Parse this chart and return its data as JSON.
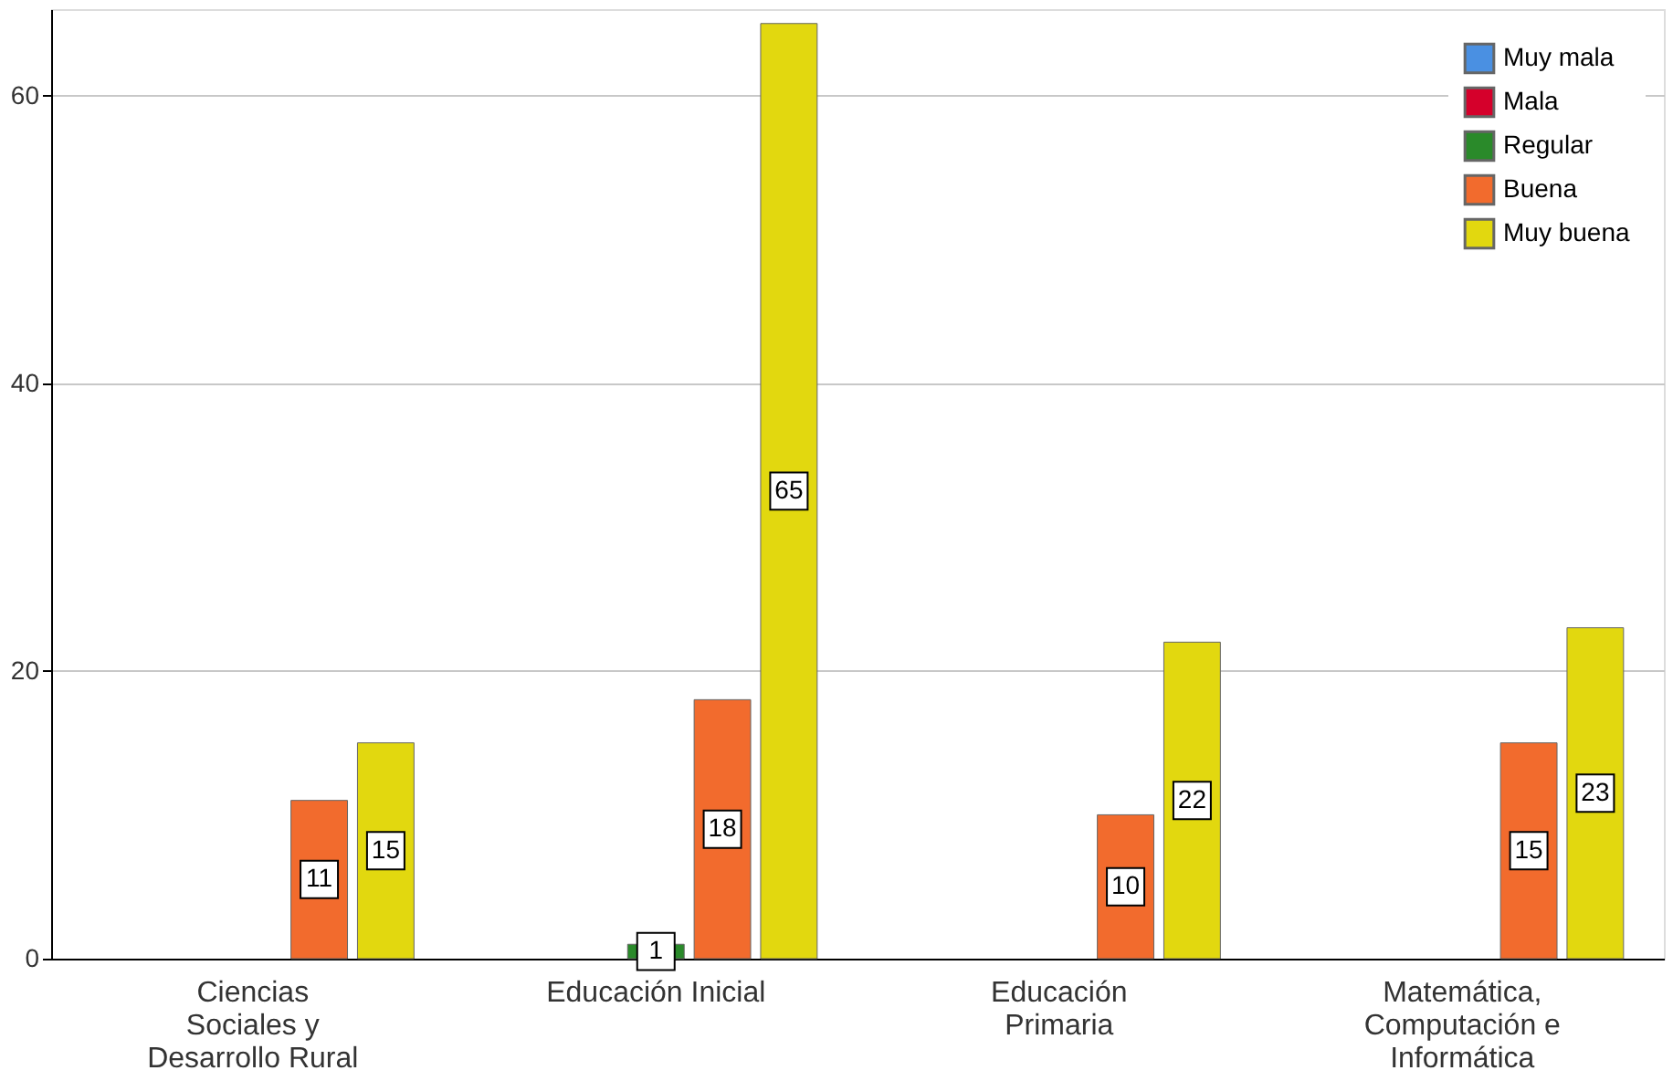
{
  "chart_data": {
    "type": "bar",
    "categories": [
      "Ciencias\nSociales y\nDesarrollo Rural",
      "Educación Inicial",
      "Educación\nPrimaria",
      "Matemática,\nComputación e\nInformática"
    ],
    "series": [
      {
        "name": "Muy mala",
        "color": "#4a90e2",
        "values": [
          null,
          null,
          null,
          null
        ]
      },
      {
        "name": "Mala",
        "color": "#d5002b",
        "values": [
          null,
          null,
          null,
          null
        ]
      },
      {
        "name": "Regular",
        "color": "#2a8a2a",
        "values": [
          null,
          1,
          null,
          null
        ]
      },
      {
        "name": "Buena",
        "color": "#f26b2d",
        "values": [
          11,
          18,
          10,
          15
        ]
      },
      {
        "name": "Muy buena",
        "color": "#e2d80f",
        "values": [
          15,
          65,
          22,
          23
        ]
      }
    ],
    "ylim": [
      0,
      66
    ],
    "yticks": [
      0,
      20,
      40,
      60
    ],
    "grid": "y",
    "legend": "top right",
    "data_labels": true
  }
}
